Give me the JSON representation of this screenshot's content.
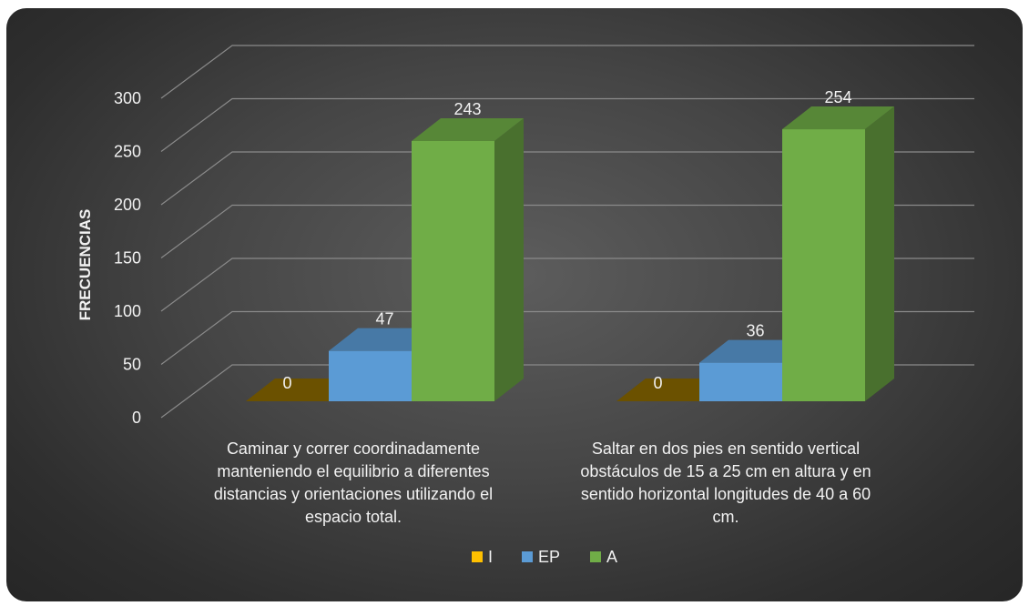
{
  "chart_data": {
    "type": "bar",
    "ylabel": "FRECUENCIAS",
    "xlabel": "",
    "ylim": [
      0,
      300
    ],
    "yticks": [
      0,
      50,
      100,
      150,
      200,
      250,
      300
    ],
    "grid": true,
    "legend_position": "bottom",
    "categories": [
      [
        "Caminar y correr coordinadamente",
        "manteniendo el equilibrio a diferentes",
        "distancias y orientaciones utilizando el",
        "espacio total."
      ],
      [
        "Saltar en dos pies en sentido vertical",
        "obstáculos de 15 a 25 cm en altura y en",
        "sentido horizontal longitudes de 40 a 60",
        "cm."
      ]
    ],
    "series": [
      {
        "name": "I",
        "values": [
          0,
          0
        ],
        "color": "#ffc000"
      },
      {
        "name": "EP",
        "values": [
          47,
          36
        ],
        "color": "#5b9bd5"
      },
      {
        "name": "A",
        "values": [
          243,
          254
        ],
        "color": "#70ad47"
      }
    ]
  }
}
